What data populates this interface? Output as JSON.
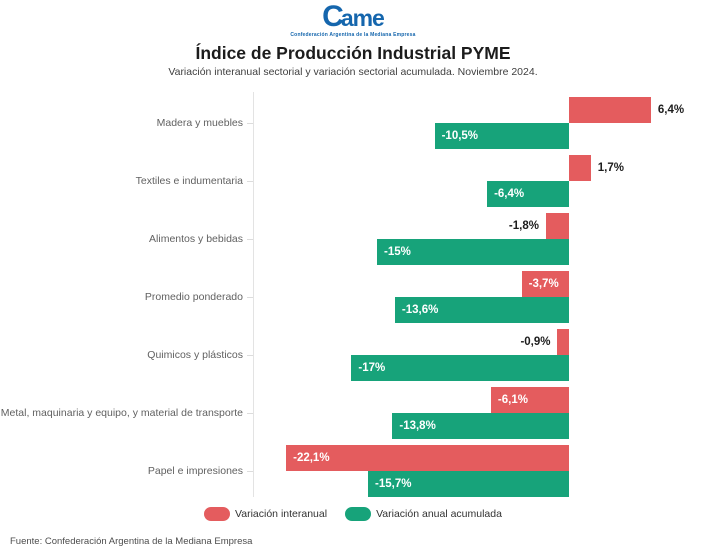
{
  "logo": {
    "text_big": "C",
    "text_rest": "ame",
    "tagline": "Confederación Argentina de la Mediana Empresa"
  },
  "header": {
    "title": "Índice de Producción Industrial PYME",
    "subtitle": "Variación interanual sectorial y variación sectorial acumulada. Noviembre 2024."
  },
  "colors": {
    "interanual": "#e45c5e",
    "acumulada": "#17a37a",
    "logo_blue": "#1566ad",
    "value_text_dark": "#1d1d1d",
    "value_text_light": "#ffffff"
  },
  "legend": {
    "items": [
      {
        "label": "Variación interanual",
        "color_key": "interanual"
      },
      {
        "label": "Variación anual acumulada",
        "color_key": "acumulada"
      }
    ]
  },
  "footer": {
    "source": "Fuente: Confederación Argentina de la Mediana Empresa"
  },
  "chart_data": {
    "type": "bar",
    "orientation": "horizontal",
    "title": "Índice de Producción Industrial PYME",
    "subtitle": "Variación interanual sectorial y variación sectorial acumulada. Noviembre 2024.",
    "categories": [
      "Madera y muebles",
      "Textiles e indumentaria",
      "Alimentos y bebidas",
      "Promedio ponderado",
      "Quimicos y plásticos",
      "Metal, maquinaria y equipo, y material de transporte",
      "Papel e impresiones"
    ],
    "series": [
      {
        "name": "Variación interanual",
        "color_key": "interanual",
        "values": [
          6.4,
          1.7,
          -1.8,
          -3.7,
          -0.9,
          -6.1,
          -22.1
        ],
        "labels": [
          "6,4%",
          "1,7%",
          "-1,8%",
          "-3,7%",
          "-0,9%",
          "-6,1%",
          "-22,1%"
        ]
      },
      {
        "name": "Variación anual acumulada",
        "color_key": "acumulada",
        "values": [
          -10.5,
          -6.4,
          -15.0,
          -13.6,
          -17.0,
          -13.8,
          -15.7
        ],
        "labels": [
          "-10,5%",
          "-6,4%",
          "-15%",
          "-13,6%",
          "-17%",
          "-13,8%",
          "-15,7%"
        ]
      }
    ],
    "xlim": [
      -25,
      11
    ],
    "grid": false,
    "legend_position": "bottom",
    "source": "Fuente: Confederación Argentina de la Mediana Empresa"
  }
}
